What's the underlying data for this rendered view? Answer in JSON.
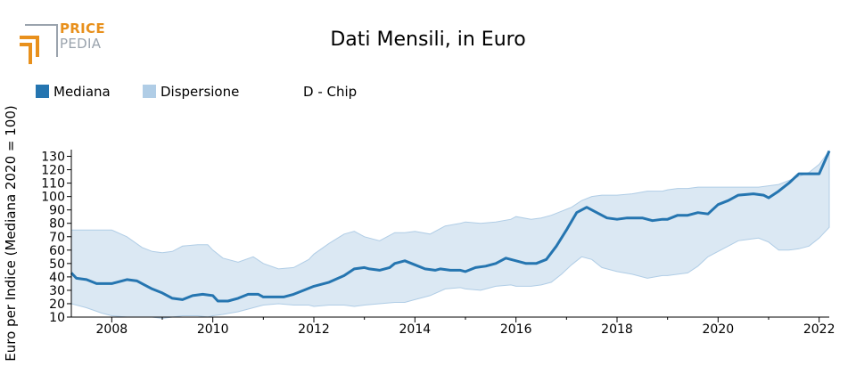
{
  "logo": {
    "line1": "PRICE",
    "line2": "PEDIA",
    "accent": "#e8901c",
    "gray": "#9aa3ad"
  },
  "chart_data": {
    "type": "area",
    "title": "Dati Mensili, in Euro",
    "annotation": "D - Chip",
    "ylabel": "Euro per Indice (Mediana 2020 = 100)",
    "xlabel": "",
    "xlim": [
      2007.2,
      2022.2
    ],
    "ylim": [
      10,
      135
    ],
    "x_ticks": [
      2008,
      2010,
      2012,
      2014,
      2016,
      2018,
      2020,
      2022
    ],
    "y_ticks": [
      10,
      20,
      30,
      40,
      50,
      60,
      70,
      80,
      90,
      100,
      110,
      120,
      130
    ],
    "legend_position": "top-left",
    "grid": false,
    "colors": {
      "median": "#2575b0",
      "dispersion": "#b0cde6",
      "dispersion_fill": "#dbe8f3",
      "axis": "#000000"
    },
    "series": [
      {
        "name": "Mediana",
        "kind": "line",
        "x": [
          2007.2,
          2007.3,
          2007.5,
          2007.7,
          2007.8,
          2008.0,
          2008.1,
          2008.3,
          2008.5,
          2008.6,
          2008.8,
          2009.0,
          2009.2,
          2009.4,
          2009.6,
          2009.8,
          2010.0,
          2010.1,
          2010.3,
          2010.5,
          2010.7,
          2010.9,
          2011.0,
          2011.2,
          2011.4,
          2011.6,
          2011.8,
          2012.0,
          2012.3,
          2012.6,
          2012.8,
          2013.0,
          2013.1,
          2013.3,
          2013.5,
          2013.6,
          2013.8,
          2014.0,
          2014.2,
          2014.4,
          2014.5,
          2014.7,
          2014.9,
          2015.0,
          2015.2,
          2015.4,
          2015.6,
          2015.8,
          2016.0,
          2016.2,
          2016.4,
          2016.6,
          2016.8,
          2017.0,
          2017.2,
          2017.4,
          2017.6,
          2017.8,
          2018.0,
          2018.2,
          2018.5,
          2018.7,
          2018.9,
          2019.0,
          2019.2,
          2019.4,
          2019.6,
          2019.8,
          2020.0,
          2020.2,
          2020.4,
          2020.7,
          2020.9,
          2021.0,
          2021.2,
          2021.4,
          2021.6,
          2021.8,
          2022.0,
          2022.2
        ],
        "y": [
          43,
          39,
          38,
          35,
          35,
          35,
          36,
          38,
          37,
          35,
          31,
          28,
          24,
          23,
          26,
          27,
          26,
          22,
          22,
          24,
          27,
          27,
          25,
          25,
          25,
          27,
          30,
          33,
          36,
          41,
          46,
          47,
          46,
          45,
          47,
          50,
          52,
          49,
          46,
          45,
          46,
          45,
          45,
          44,
          47,
          48,
          50,
          54,
          52,
          50,
          50,
          53,
          63,
          75,
          88,
          92,
          88,
          84,
          83,
          84,
          84,
          82,
          83,
          83,
          86,
          86,
          88,
          87,
          94,
          97,
          101,
          102,
          101,
          99,
          104,
          110,
          117,
          117,
          117,
          134
        ]
      },
      {
        "name": "Dispersione",
        "kind": "band",
        "x": [
          2007.2,
          2007.5,
          2007.8,
          2008.0,
          2008.3,
          2008.6,
          2008.8,
          2009.0,
          2009.2,
          2009.4,
          2009.7,
          2009.9,
          2010.0,
          2010.2,
          2010.5,
          2010.8,
          2011.0,
          2011.3,
          2011.6,
          2011.9,
          2012.0,
          2012.3,
          2012.6,
          2012.8,
          2013.0,
          2013.3,
          2013.6,
          2013.8,
          2014.0,
          2014.3,
          2014.6,
          2014.9,
          2015.0,
          2015.3,
          2015.6,
          2015.9,
          2016.0,
          2016.3,
          2016.5,
          2016.7,
          2016.9,
          2017.1,
          2017.3,
          2017.5,
          2017.7,
          2017.9,
          2018.0,
          2018.3,
          2018.6,
          2018.9,
          2019.0,
          2019.2,
          2019.4,
          2019.6,
          2019.8,
          2020.0,
          2020.2,
          2020.4,
          2020.6,
          2020.8,
          2021.0,
          2021.2,
          2021.4,
          2021.6,
          2021.8,
          2022.0,
          2022.2
        ],
        "upper": [
          75,
          75,
          75,
          75,
          70,
          62,
          59,
          58,
          59,
          63,
          64,
          64,
          60,
          54,
          51,
          55,
          50,
          46,
          47,
          53,
          57,
          65,
          72,
          74,
          70,
          67,
          73,
          73,
          74,
          72,
          78,
          80,
          81,
          80,
          81,
          83,
          85,
          83,
          84,
          86,
          89,
          92,
          97,
          100,
          101,
          101,
          101,
          102,
          104,
          104,
          105,
          106,
          106,
          107,
          107,
          107,
          107,
          107,
          107,
          107,
          108,
          109,
          112,
          115,
          118,
          124,
          134
        ],
        "lower": [
          20,
          17,
          13,
          11,
          10,
          10,
          10,
          9,
          10,
          11,
          11,
          10,
          11,
          12,
          14,
          17,
          19,
          20,
          19,
          19,
          18,
          19,
          19,
          18,
          19,
          20,
          21,
          21,
          23,
          26,
          31,
          32,
          31,
          30,
          33,
          34,
          33,
          33,
          34,
          36,
          42,
          49,
          55,
          53,
          47,
          45,
          44,
          42,
          39,
          41,
          41,
          42,
          43,
          48,
          55,
          59,
          63,
          67,
          68,
          69,
          66,
          60,
          60,
          61,
          63,
          69,
          77
        ]
      }
    ]
  }
}
